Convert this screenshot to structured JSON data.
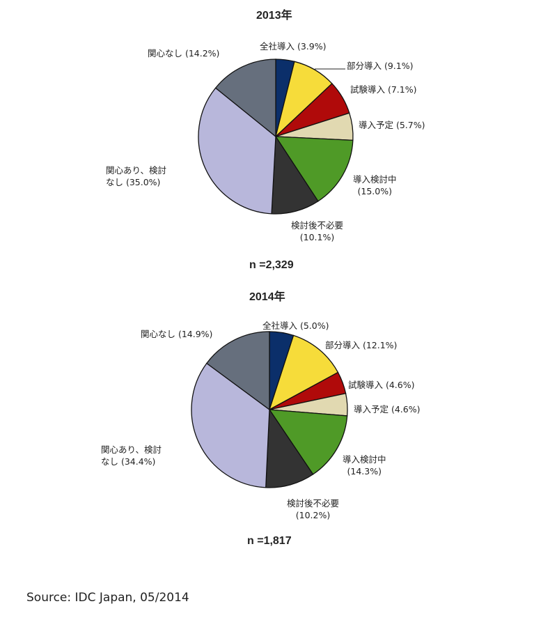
{
  "chart_data": [
    {
      "type": "pie",
      "title": "2013年",
      "n_label": "n =2,329",
      "slices": [
        {
          "label": "全社導入 (3.9%)",
          "value": 3.9,
          "color": "#0b2f6a"
        },
        {
          "label": "部分導入 (9.1%)",
          "value": 9.1,
          "color": "#f6dc3a"
        },
        {
          "label": "試験導入 (7.1%)",
          "value": 7.1,
          "color": "#b00a0a"
        },
        {
          "label": "導入予定 (5.7%)",
          "value": 5.7,
          "color": "#e1d9b1"
        },
        {
          "label": "導入検討中 (15.0%)",
          "value": 15.0,
          "color": "#4f9a27"
        },
        {
          "label": "検討後不必要 (10.1%)",
          "value": 10.1,
          "color": "#333333"
        },
        {
          "label": "関心あり、検討なし (35.0%)",
          "value": 35.0,
          "color": "#b8b7db"
        },
        {
          "label": "関心なし (14.2%)",
          "value": 14.2,
          "color": "#666f7d"
        }
      ]
    },
    {
      "type": "pie",
      "title": "2014年",
      "n_label": "n =1,817",
      "slices": [
        {
          "label": "全社導入 (5.0%)",
          "value": 5.0,
          "color": "#0b2f6a"
        },
        {
          "label": "部分導入 (12.1%)",
          "value": 12.1,
          "color": "#f6dc3a"
        },
        {
          "label": "試験導入 (4.6%)",
          "value": 4.6,
          "color": "#b00a0a"
        },
        {
          "label": "導入予定 (4.6%)",
          "value": 4.6,
          "color": "#e1d9b1"
        },
        {
          "label": "導入検討中 (14.3%)",
          "value": 14.3,
          "color": "#4f9a27"
        },
        {
          "label": "検討後不必要 (10.2%)",
          "value": 10.2,
          "color": "#333333"
        },
        {
          "label": "関心あり、検討なし (34.4%)",
          "value": 34.4,
          "color": "#b8b7db"
        },
        {
          "label": "関心なし (14.9%)",
          "value": 14.9,
          "color": "#666f7d"
        }
      ]
    }
  ],
  "labels": [
    {
      "l1": "全社導入 (3.9%)"
    },
    {
      "l1": "部分導入 (9.1%)"
    },
    {
      "l1": "試験導入 (7.1%)"
    },
    {
      "l1": "導入予定 (5.7%)"
    },
    {
      "l1": "導入検討中",
      "l2": "(15.0%)"
    },
    {
      "l1": "検討後不必要",
      "l2": "(10.1%)"
    },
    {
      "l1": "関心あり、検討",
      "l2": "なし (35.0%)"
    },
    {
      "l1": "関心なし (14.2%)"
    },
    {
      "l1": "全社導入 (5.0%)"
    },
    {
      "l1": "部分導入 (12.1%)"
    },
    {
      "l1": "試験導入 (4.6%)"
    },
    {
      "l1": "導入予定 (4.6%)"
    },
    {
      "l1": "導入検討中",
      "l2": "(14.3%)"
    },
    {
      "l1": "検討後不必要",
      "l2": "(10.2%)"
    },
    {
      "l1": "関心あり、検討",
      "l2": "なし (34.4%)"
    },
    {
      "l1": "関心なし (14.9%)"
    }
  ],
  "source": "Source: IDC Japan, 05/2014"
}
